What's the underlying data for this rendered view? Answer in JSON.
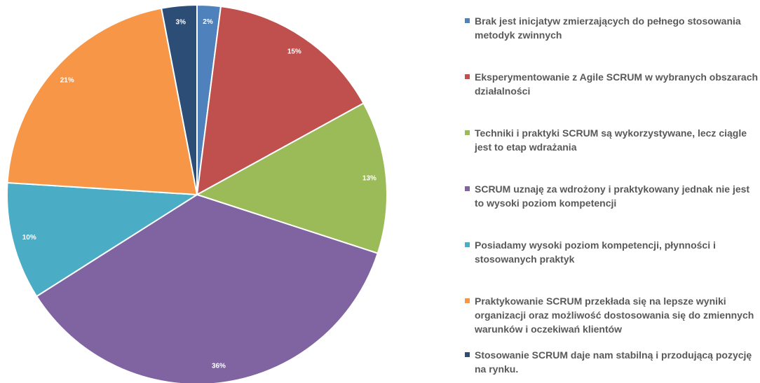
{
  "chart_data": {
    "type": "pie",
    "categories": [
      "Brak jest inicjatyw zmierzających do pełnego stosowania metodyk zwinnych",
      "Eksperymentowanie z Agile SCRUM w wybranych obszarach działalności",
      "Techniki i praktyki SCRUM są wykorzystywane, lecz ciągle jest to etap wdrażania",
      "SCRUM uznaję za wdrożony i praktykowany jednak nie jest to wysoki poziom kompetencji",
      "Posiadamy wysoki poziom kompetencji, płynności i stosowanych praktyk",
      "Praktykowanie SCRUM przekłada się na lepsze wyniki organizacji oraz możliwość dostosowania się do zmiennych warunków i oczekiwań klientów",
      "Stosowanie SCRUM daje nam stabilną i przodującą pozycję na rynku."
    ],
    "values": [
      2,
      15,
      13,
      36,
      10,
      21,
      3
    ],
    "value_labels": [
      "2%",
      "15%",
      "13%",
      "36%",
      "10%",
      "21%",
      "3%"
    ],
    "colors": [
      "#4f81bd",
      "#c0504d",
      "#9bbb59",
      "#8064a2",
      "#4bacc6",
      "#f79646",
      "#2c4d75"
    ],
    "legend": "right"
  }
}
